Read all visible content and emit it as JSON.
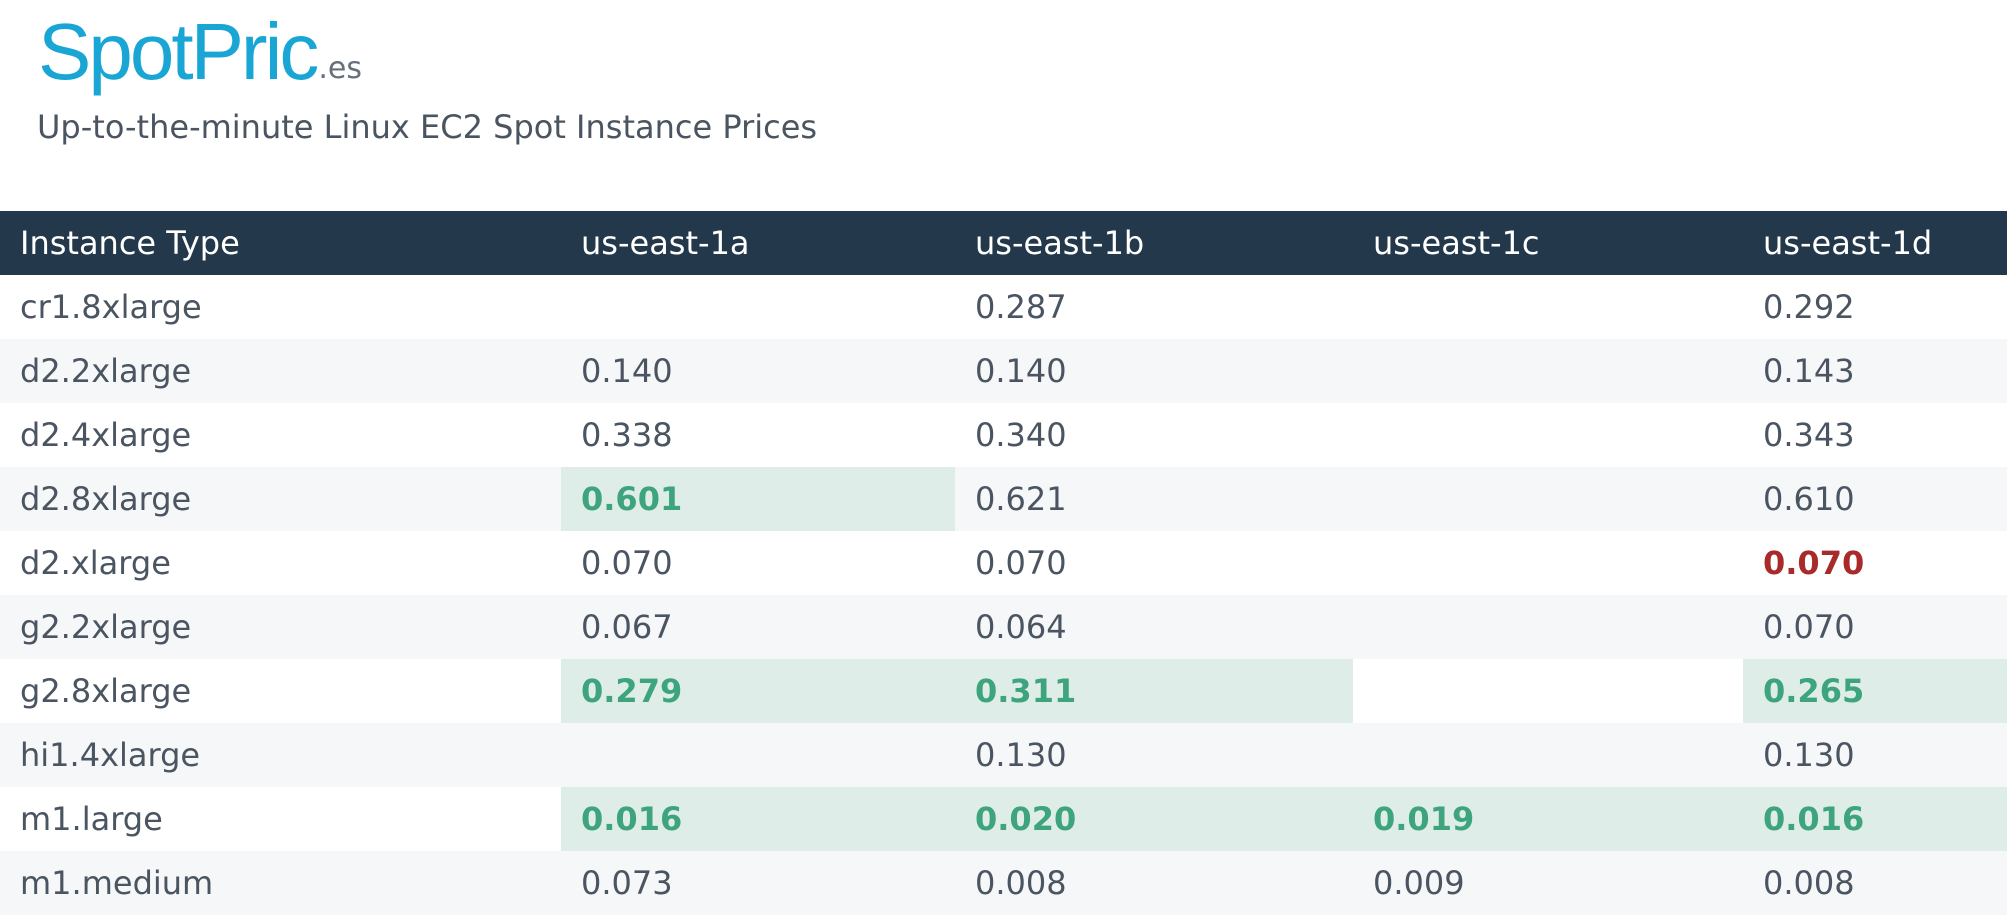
{
  "brand": {
    "name": "SpotPric",
    "tld": ".es"
  },
  "tagline": "Up-to-the-minute Linux EC2 Spot Instance Prices",
  "colors": {
    "brand": "#1aa6d4",
    "header_bg": "#23394b",
    "cheapest_bg": "#deede8",
    "cheapest_text": "#3da47d",
    "alert_text": "#a82a2a"
  },
  "table": {
    "columns": [
      "Instance Type",
      "us-east-1a",
      "us-east-1b",
      "us-east-1c",
      "us-east-1d"
    ],
    "rows": [
      {
        "type": "cr1.8xlarge",
        "prices": [
          "",
          "0.287",
          "",
          "0.292"
        ],
        "cheapest": [],
        "alert": []
      },
      {
        "type": "d2.2xlarge",
        "prices": [
          "0.140",
          "0.140",
          "",
          "0.143"
        ],
        "cheapest": [],
        "alert": []
      },
      {
        "type": "d2.4xlarge",
        "prices": [
          "0.338",
          "0.340",
          "",
          "0.343"
        ],
        "cheapest": [],
        "alert": []
      },
      {
        "type": "d2.8xlarge",
        "prices": [
          "0.601",
          "0.621",
          "",
          "0.610"
        ],
        "cheapest": [
          0
        ],
        "alert": []
      },
      {
        "type": "d2.xlarge",
        "prices": [
          "0.070",
          "0.070",
          "",
          "0.070"
        ],
        "cheapest": [],
        "alert": [
          3
        ]
      },
      {
        "type": "g2.2xlarge",
        "prices": [
          "0.067",
          "0.064",
          "",
          "0.070"
        ],
        "cheapest": [],
        "alert": []
      },
      {
        "type": "g2.8xlarge",
        "prices": [
          "0.279",
          "0.311",
          "",
          "0.265"
        ],
        "cheapest": [
          0,
          1,
          3
        ],
        "alert": []
      },
      {
        "type": "hi1.4xlarge",
        "prices": [
          "",
          "0.130",
          "",
          "0.130"
        ],
        "cheapest": [],
        "alert": []
      },
      {
        "type": "m1.large",
        "prices": [
          "0.016",
          "0.020",
          "0.019",
          "0.016"
        ],
        "cheapest": [
          0,
          1,
          2,
          3
        ],
        "alert": []
      },
      {
        "type": "m1.medium",
        "prices": [
          "0.073",
          "0.008",
          "0.009",
          "0.008"
        ],
        "cheapest": [],
        "alert": []
      }
    ]
  }
}
